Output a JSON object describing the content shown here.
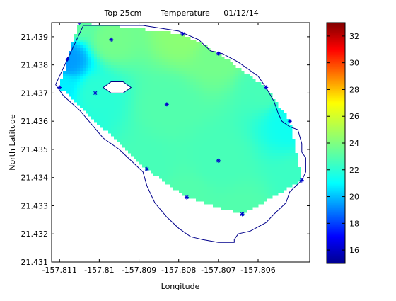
{
  "chart_data": {
    "type": "heatmap",
    "title_parts": [
      "Top 25cm",
      "Temperature",
      "01/12/14"
    ],
    "xlabel": "Longitude",
    "ylabel": "North Latitude",
    "xlim": [
      -157.8112,
      -157.8047
    ],
    "ylim": [
      21.431,
      21.4395
    ],
    "x_ticks": [
      -157.811,
      -157.81,
      -157.809,
      -157.808,
      -157.807,
      -157.806
    ],
    "x_tick_labels": [
      "-157.811",
      "-157.81",
      "-157.809",
      "-157.808",
      "-157.807",
      "-157.806"
    ],
    "y_ticks": [
      21.431,
      21.432,
      21.433,
      21.434,
      21.435,
      21.436,
      21.437,
      21.438,
      21.439
    ],
    "y_tick_labels": [
      "21.431",
      "21.432",
      "21.433",
      "21.434",
      "21.435",
      "21.436",
      "21.437",
      "21.438",
      "21.439"
    ],
    "colorbar": {
      "min": 15,
      "max": 33,
      "ticks": [
        16,
        18,
        20,
        22,
        24,
        26,
        28,
        30,
        32
      ],
      "tick_labels": [
        "16",
        "18",
        "20",
        "22",
        "24",
        "26",
        "28",
        "30",
        "32"
      ],
      "colormap": "jet"
    },
    "stations": [
      {
        "lon": -157.8105,
        "lat": 21.4395,
        "temp": 23.4
      },
      {
        "lon": -157.8097,
        "lat": 21.4389,
        "temp": 23.8
      },
      {
        "lon": -157.8079,
        "lat": 21.4391,
        "temp": 24.2
      },
      {
        "lon": -157.807,
        "lat": 21.4384,
        "temp": 23.8
      },
      {
        "lon": -157.8058,
        "lat": 21.4372,
        "temp": 23.0
      },
      {
        "lon": -157.8052,
        "lat": 21.436,
        "temp": 22.0
      },
      {
        "lon": -157.8049,
        "lat": 21.4339,
        "temp": 22.8
      },
      {
        "lon": -157.8064,
        "lat": 21.4327,
        "temp": 23.2
      },
      {
        "lon": -157.807,
        "lat": 21.4346,
        "temp": 23.0
      },
      {
        "lon": -157.8078,
        "lat": 21.4333,
        "temp": 23.2
      },
      {
        "lon": -157.8088,
        "lat": 21.4343,
        "temp": 23.0
      },
      {
        "lon": -157.8083,
        "lat": 21.4366,
        "temp": 23.2
      },
      {
        "lon": -157.8101,
        "lat": 21.437,
        "temp": 22.5
      },
      {
        "lon": -157.811,
        "lat": 21.4372,
        "temp": 21.5
      },
      {
        "lon": -157.8108,
        "lat": 21.4382,
        "temp": 20.0
      }
    ],
    "coastline": [
      [
        -157.8111,
        21.4373
      ],
      [
        -157.8109,
        21.4379
      ],
      [
        -157.8106,
        21.4388
      ],
      [
        -157.8104,
        21.4394
      ],
      [
        -157.8099,
        21.4394
      ],
      [
        -157.8089,
        21.4394
      ],
      [
        -157.808,
        21.4392
      ],
      [
        -157.8075,
        21.4389
      ],
      [
        -157.8072,
        21.4385
      ],
      [
        -157.8069,
        21.4384
      ],
      [
        -157.8065,
        21.4381
      ],
      [
        -157.8062,
        21.4378
      ],
      [
        -157.806,
        21.4376
      ],
      [
        -157.8058,
        21.4372
      ],
      [
        -157.8056,
        21.4367
      ],
      [
        -157.8055,
        21.4363
      ],
      [
        -157.8054,
        21.436
      ],
      [
        -157.8052,
        21.4358
      ],
      [
        -157.8052,
        21.4358
      ],
      [
        -157.805,
        21.4357
      ],
      [
        -157.8049,
        21.4352
      ],
      [
        -157.8049,
        21.4349
      ],
      [
        -157.8048,
        21.4347
      ],
      [
        -157.8048,
        21.4342
      ],
      [
        -157.8049,
        21.4339
      ],
      [
        -157.8052,
        21.4335
      ],
      [
        -157.8053,
        21.4331
      ],
      [
        -157.8056,
        21.4327
      ],
      [
        -157.8058,
        21.4324
      ],
      [
        -157.8062,
        21.4321
      ],
      [
        -157.8065,
        21.432
      ],
      [
        -157.8066,
        21.4318
      ],
      [
        -157.8066,
        21.4317
      ],
      [
        -157.807,
        21.4317
      ],
      [
        -157.8074,
        21.4318
      ],
      [
        -157.8077,
        21.4319
      ],
      [
        -157.808,
        21.4322
      ],
      [
        -157.8083,
        21.4326
      ],
      [
        -157.8086,
        21.4331
      ],
      [
        -157.8088,
        21.4337
      ],
      [
        -157.8089,
        21.4342
      ],
      [
        -157.8092,
        21.4346
      ],
      [
        -157.8095,
        21.435
      ],
      [
        -157.8099,
        21.4354
      ],
      [
        -157.8102,
        21.4359
      ],
      [
        -157.8105,
        21.4364
      ],
      [
        -157.8109,
        21.4369
      ],
      [
        -157.8111,
        21.4373
      ]
    ],
    "island": [
      [
        -157.8099,
        21.4372
      ],
      [
        -157.8097,
        21.4374
      ],
      [
        -157.8094,
        21.4374
      ],
      [
        -157.8092,
        21.4372
      ],
      [
        -157.8094,
        21.437
      ],
      [
        -157.8097,
        21.437
      ]
    ]
  }
}
